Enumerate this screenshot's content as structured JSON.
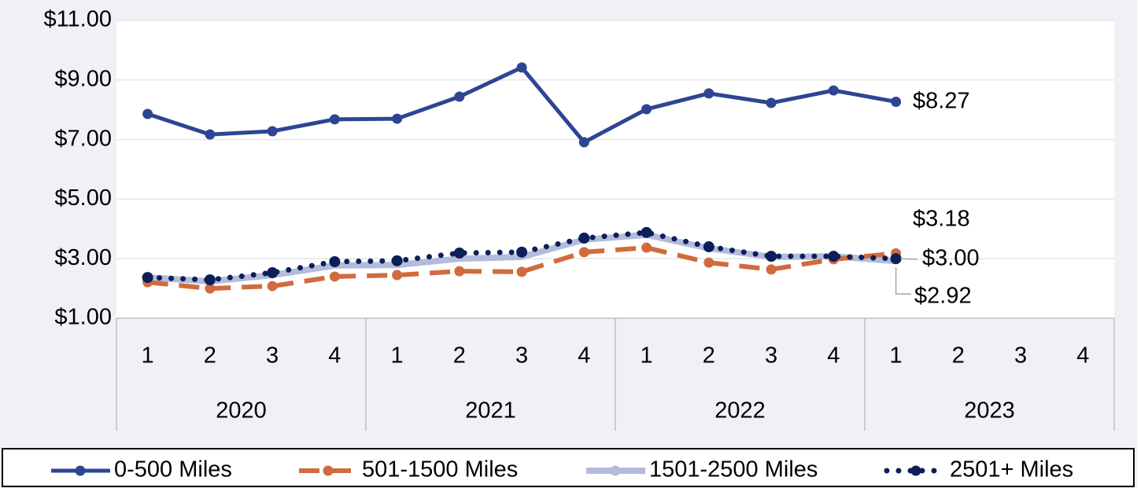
{
  "chart_data": {
    "type": "line",
    "categories": [
      "1",
      "2",
      "3",
      "4",
      "1",
      "2",
      "3",
      "4",
      "1",
      "2",
      "3",
      "4",
      "1",
      "2",
      "3",
      "4"
    ],
    "groups": [
      "2020",
      "2021",
      "2022",
      "2023"
    ],
    "ylim": [
      1,
      11
    ],
    "yticks": [
      {
        "value": 1,
        "label": "$1.00"
      },
      {
        "value": 3,
        "label": "$3.00"
      },
      {
        "value": 5,
        "label": "$5.00"
      },
      {
        "value": 7,
        "label": "$7.00"
      },
      {
        "value": 9,
        "label": "$9.00"
      },
      {
        "value": 11,
        "label": "$11.00"
      }
    ],
    "grid": true,
    "legend": "bottom",
    "series": [
      {
        "name": "0-500 Miles",
        "color": "#2e4593",
        "style": "solid",
        "markers": true,
        "values": [
          7.86,
          7.17,
          7.28,
          7.68,
          7.7,
          8.44,
          9.42,
          6.91,
          8.02,
          8.55,
          8.23,
          8.65,
          8.27,
          null,
          null,
          null
        ],
        "value_labels": [
          null,
          null,
          null,
          null,
          null,
          null,
          null,
          null,
          null,
          null,
          null,
          null,
          "$8.27",
          null,
          null,
          null
        ]
      },
      {
        "name": "501-1500 Miles",
        "color": "#d06b3e",
        "style": "dashed",
        "markers": true,
        "values": [
          2.21,
          2.0,
          2.08,
          2.4,
          2.45,
          2.58,
          2.56,
          3.22,
          3.37,
          2.87,
          2.64,
          2.98,
          3.18,
          null,
          null,
          null
        ],
        "value_labels": [
          null,
          null,
          null,
          null,
          null,
          null,
          null,
          null,
          null,
          null,
          null,
          null,
          "$3.18",
          null,
          null,
          null
        ]
      },
      {
        "name": "1501-2500 Miles",
        "color": "#b4bcdc",
        "style": "solid",
        "markers": false,
        "values": [
          2.37,
          2.24,
          2.45,
          2.77,
          2.79,
          3.0,
          3.06,
          3.64,
          3.8,
          3.35,
          3.06,
          3.08,
          2.92,
          null,
          null,
          null
        ],
        "value_labels": [
          null,
          null,
          null,
          null,
          null,
          null,
          null,
          null,
          null,
          null,
          null,
          null,
          "$2.92",
          null,
          null,
          null
        ]
      },
      {
        "name": "2501+ Miles",
        "color": "#0c1f5a",
        "style": "dotted",
        "markers": true,
        "values": [
          2.37,
          2.29,
          2.53,
          2.9,
          2.93,
          3.19,
          3.22,
          3.69,
          3.88,
          3.4,
          3.08,
          3.08,
          3.0,
          null,
          null,
          null
        ],
        "value_labels": [
          null,
          null,
          null,
          null,
          null,
          null,
          null,
          null,
          null,
          null,
          null,
          null,
          "$3.00",
          null,
          null,
          null
        ]
      }
    ]
  }
}
